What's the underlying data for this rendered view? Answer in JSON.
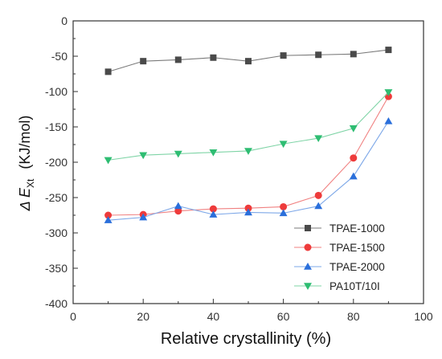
{
  "chart_data": {
    "type": "line",
    "title": "",
    "xlabel": "Relative crystallinity (%)",
    "ylabel": {
      "prefix": "Δ E",
      "subscript": "Xt",
      "unit": "(KJ/mol)"
    },
    "xlim": [
      0,
      100
    ],
    "ylim": [
      -400,
      0
    ],
    "xticks": [
      0,
      20,
      40,
      60,
      80,
      100
    ],
    "yticks": [
      0,
      -50,
      -100,
      -150,
      -200,
      -250,
      -300,
      -350,
      -400
    ],
    "grid": false,
    "legend_position": "bottom-right",
    "x": [
      10,
      20,
      30,
      40,
      50,
      60,
      70,
      80,
      90
    ],
    "series": [
      {
        "name": "TPAE-1000",
        "marker": "square",
        "color": "#4a4a4a",
        "line_color": "#7a7a7a",
        "values": [
          -72,
          -57,
          -55,
          -52,
          -57,
          -49,
          -48,
          -47,
          -41
        ]
      },
      {
        "name": "TPAE-1500",
        "marker": "circle",
        "color": "#ee3b3b",
        "line_color": "#f08080",
        "values": [
          -275,
          -274,
          -269,
          -266,
          -265,
          -263,
          -247,
          -194,
          -107
        ]
      },
      {
        "name": "TPAE-2000",
        "marker": "triangle-up",
        "color": "#2a6fdb",
        "line_color": "#7ea8e8",
        "values": [
          -282,
          -278,
          -262,
          -274,
          -271,
          -272,
          -262,
          -220,
          -142
        ]
      },
      {
        "name": "PA10T/10I",
        "marker": "triangle-down",
        "color": "#2ebd72",
        "line_color": "#7fd4a6",
        "values": [
          -197,
          -190,
          -188,
          -186,
          -184,
          -174,
          -166,
          -152,
          -101
        ]
      }
    ]
  }
}
